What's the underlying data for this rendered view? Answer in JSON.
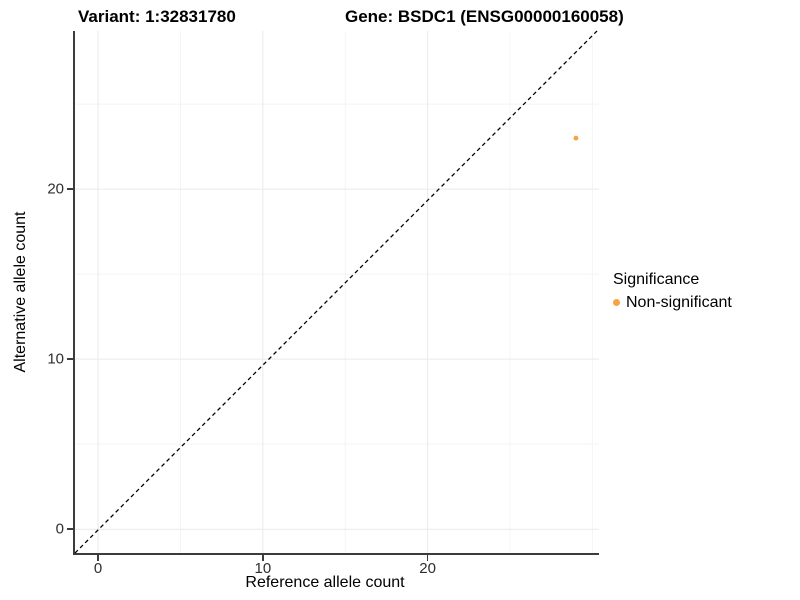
{
  "titles": {
    "variant": "Variant: 1:32831780",
    "gene": "Gene: BSDC1 (ENSG00000160058)"
  },
  "axes": {
    "x": {
      "label": "Reference allele count",
      "tick_labels": [
        "0",
        "10",
        "20"
      ]
    },
    "y": {
      "label": "Alternative allele count",
      "tick_labels": [
        "0",
        "10",
        "20"
      ]
    }
  },
  "legend": {
    "title": "Significance",
    "items": [
      {
        "label": "Non-significant",
        "color": "#F9A242"
      }
    ]
  },
  "colors": {
    "background": "#ffffff",
    "axis_line": "#3c3c3c",
    "grid_major": "#e9e9e9",
    "grid_minor": "#f4f4f4",
    "reference_line": "#000000",
    "point": "#F9A242"
  },
  "chart_data": {
    "type": "scatter",
    "title_left": "Variant: 1:32831780",
    "title_right": "Gene: BSDC1 (ENSG00000160058)",
    "xlabel": "Reference allele count",
    "ylabel": "Alternative allele count",
    "xlim": [
      -1.4,
      30.4
    ],
    "ylim": [
      -1.4,
      29.3
    ],
    "x_major_ticks": [
      0,
      10,
      20
    ],
    "y_major_ticks": [
      0,
      10,
      20
    ],
    "x_minor_ticks": [
      5,
      15,
      25,
      30
    ],
    "y_minor_ticks": [
      5,
      15,
      25
    ],
    "grid": true,
    "legend_position": "right",
    "points": [
      {
        "x": 29,
        "y": 23,
        "series": "Non-significant",
        "color": "#F9A242",
        "radius_px": 2.4
      }
    ],
    "reference_line": {
      "type": "identity",
      "slope": 1,
      "intercept": 0,
      "style": "dashed",
      "color": "#000000"
    }
  }
}
